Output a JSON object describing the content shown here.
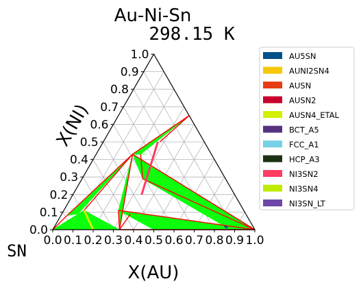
{
  "chart_data": {
    "type": "ternary",
    "title": "Au-Ni-Sn",
    "subtitle": "298.15 K",
    "xlabel": "X(AU)",
    "ylabel": "X(NI)",
    "corner_label": "SN",
    "xlim": [
      0,
      1
    ],
    "ylim": [
      0,
      1
    ],
    "grid": true,
    "legend_position": "outside-right",
    "x_ticks": [
      "0.0",
      "0.1",
      "0.2",
      "0.3",
      "0.4",
      "0.5",
      "0.6",
      "0.7",
      "0.8",
      "0.9",
      "1.0"
    ],
    "y_ticks": [
      "0.0",
      "0.1",
      "0.2",
      "0.3",
      "0.4",
      "0.5",
      "0.6",
      "0.7",
      "0.8",
      "0.9",
      "1.0"
    ],
    "legend": [
      {
        "name": "AU5SN",
        "color": "#00508a"
      },
      {
        "name": "AUNI2SN4",
        "color": "#f5c800"
      },
      {
        "name": "AUSN",
        "color": "#e83c14"
      },
      {
        "name": "AUSN2",
        "color": "#c8002d"
      },
      {
        "name": "AUSN4_ETAL",
        "color": "#d2f000"
      },
      {
        "name": "BCT_A5",
        "color": "#55327d"
      },
      {
        "name": "FCC_A1",
        "color": "#78d2e6"
      },
      {
        "name": "HCP_A3",
        "color": "#1e3214"
      },
      {
        "name": "NI3SN2",
        "color": "#ff3c64"
      },
      {
        "name": "NI3SN4",
        "color": "#beeb00"
      },
      {
        "name": "NI3SN_LT",
        "color": "#6e46aa"
      }
    ],
    "tie_triangle_color": "#00ff00",
    "boundary_color": "#ff0000",
    "two_phase_regions": [
      {
        "vertices": [
          [
            0.35,
            0.65
          ],
          [
            0.18,
            0.43
          ],
          [
            0.22,
            0.43
          ]
        ]
      },
      {
        "vertices": [
          [
            0.22,
            0.43
          ],
          [
            0.18,
            0.43
          ],
          [
            0.25,
            0.43
          ]
        ]
      },
      {
        "vertices": [
          [
            0.18,
            0.43
          ],
          [
            0.03,
            0.08
          ],
          [
            0.08,
            0.09
          ]
        ]
      },
      {
        "vertices": [
          [
            0.0,
            0.0
          ],
          [
            0.1,
            0.11
          ],
          [
            0.33,
            0.0
          ]
        ]
      },
      {
        "vertices": [
          [
            0.18,
            0.43
          ],
          [
            0.27,
            0.11
          ],
          [
            0.33,
            0.0
          ]
        ]
      },
      {
        "vertices": [
          [
            0.18,
            0.43
          ],
          [
            1.0,
            0.0
          ],
          [
            0.3,
            0.29
          ]
        ]
      },
      {
        "vertices": [
          [
            0.27,
            0.11
          ],
          [
            0.5,
            0.0
          ],
          [
            1.0,
            0.0
          ]
        ]
      },
      {
        "vertices": [
          [
            0.3,
            0.29
          ],
          [
            0.85,
            0.015
          ],
          [
            1.0,
            0.0
          ]
        ]
      }
    ],
    "boundaries": [
      {
        "from": [
          0.35,
          0.65
        ],
        "to": [
          0.18,
          0.43
        ]
      },
      {
        "from": [
          0.35,
          0.65
        ],
        "to": [
          0.28,
          0.5
        ]
      },
      {
        "from": [
          0.18,
          0.43
        ],
        "to": [
          0.03,
          0.08
        ]
      },
      {
        "from": [
          0.18,
          0.43
        ],
        "to": [
          0.1,
          0.11
        ]
      },
      {
        "from": [
          0.18,
          0.43
        ],
        "to": [
          0.33,
          0.0
        ]
      },
      {
        "from": [
          0.18,
          0.43
        ],
        "to": [
          1.0,
          0.0
        ]
      },
      {
        "from": [
          0.27,
          0.11
        ],
        "to": [
          0.33,
          0.0
        ]
      },
      {
        "from": [
          0.27,
          0.11
        ],
        "to": [
          1.0,
          0.0
        ]
      },
      {
        "from": [
          0.33,
          0.0
        ],
        "to": [
          0.5,
          0.0
        ]
      },
      {
        "from": [
          0.5,
          0.0
        ],
        "to": [
          1.0,
          0.0
        ]
      },
      {
        "from": [
          0.3,
          0.29
        ],
        "to": [
          1.0,
          0.0
        ]
      },
      {
        "from": [
          0.22,
          0.43
        ],
        "to": [
          0.3,
          0.29
        ]
      },
      {
        "from": [
          0.0,
          0.0
        ],
        "to": [
          0.03,
          0.08
        ]
      },
      {
        "from": [
          0.33,
          0.0
        ],
        "to": [
          0.34,
          0.09
        ]
      }
    ],
    "phase_lines": [
      {
        "phase": "NI3SN2",
        "from": [
          0.27,
          0.5
        ],
        "to": [
          0.34,
          0.2
        ]
      },
      {
        "phase": "AUSN4_ETAL",
        "from": [
          0.1,
          0.11
        ],
        "to": [
          0.2,
          0.0
        ]
      },
      {
        "phase": "AU5SN",
        "from": [
          0.84,
          0.02
        ],
        "to": [
          0.86,
          0.01
        ]
      }
    ]
  }
}
